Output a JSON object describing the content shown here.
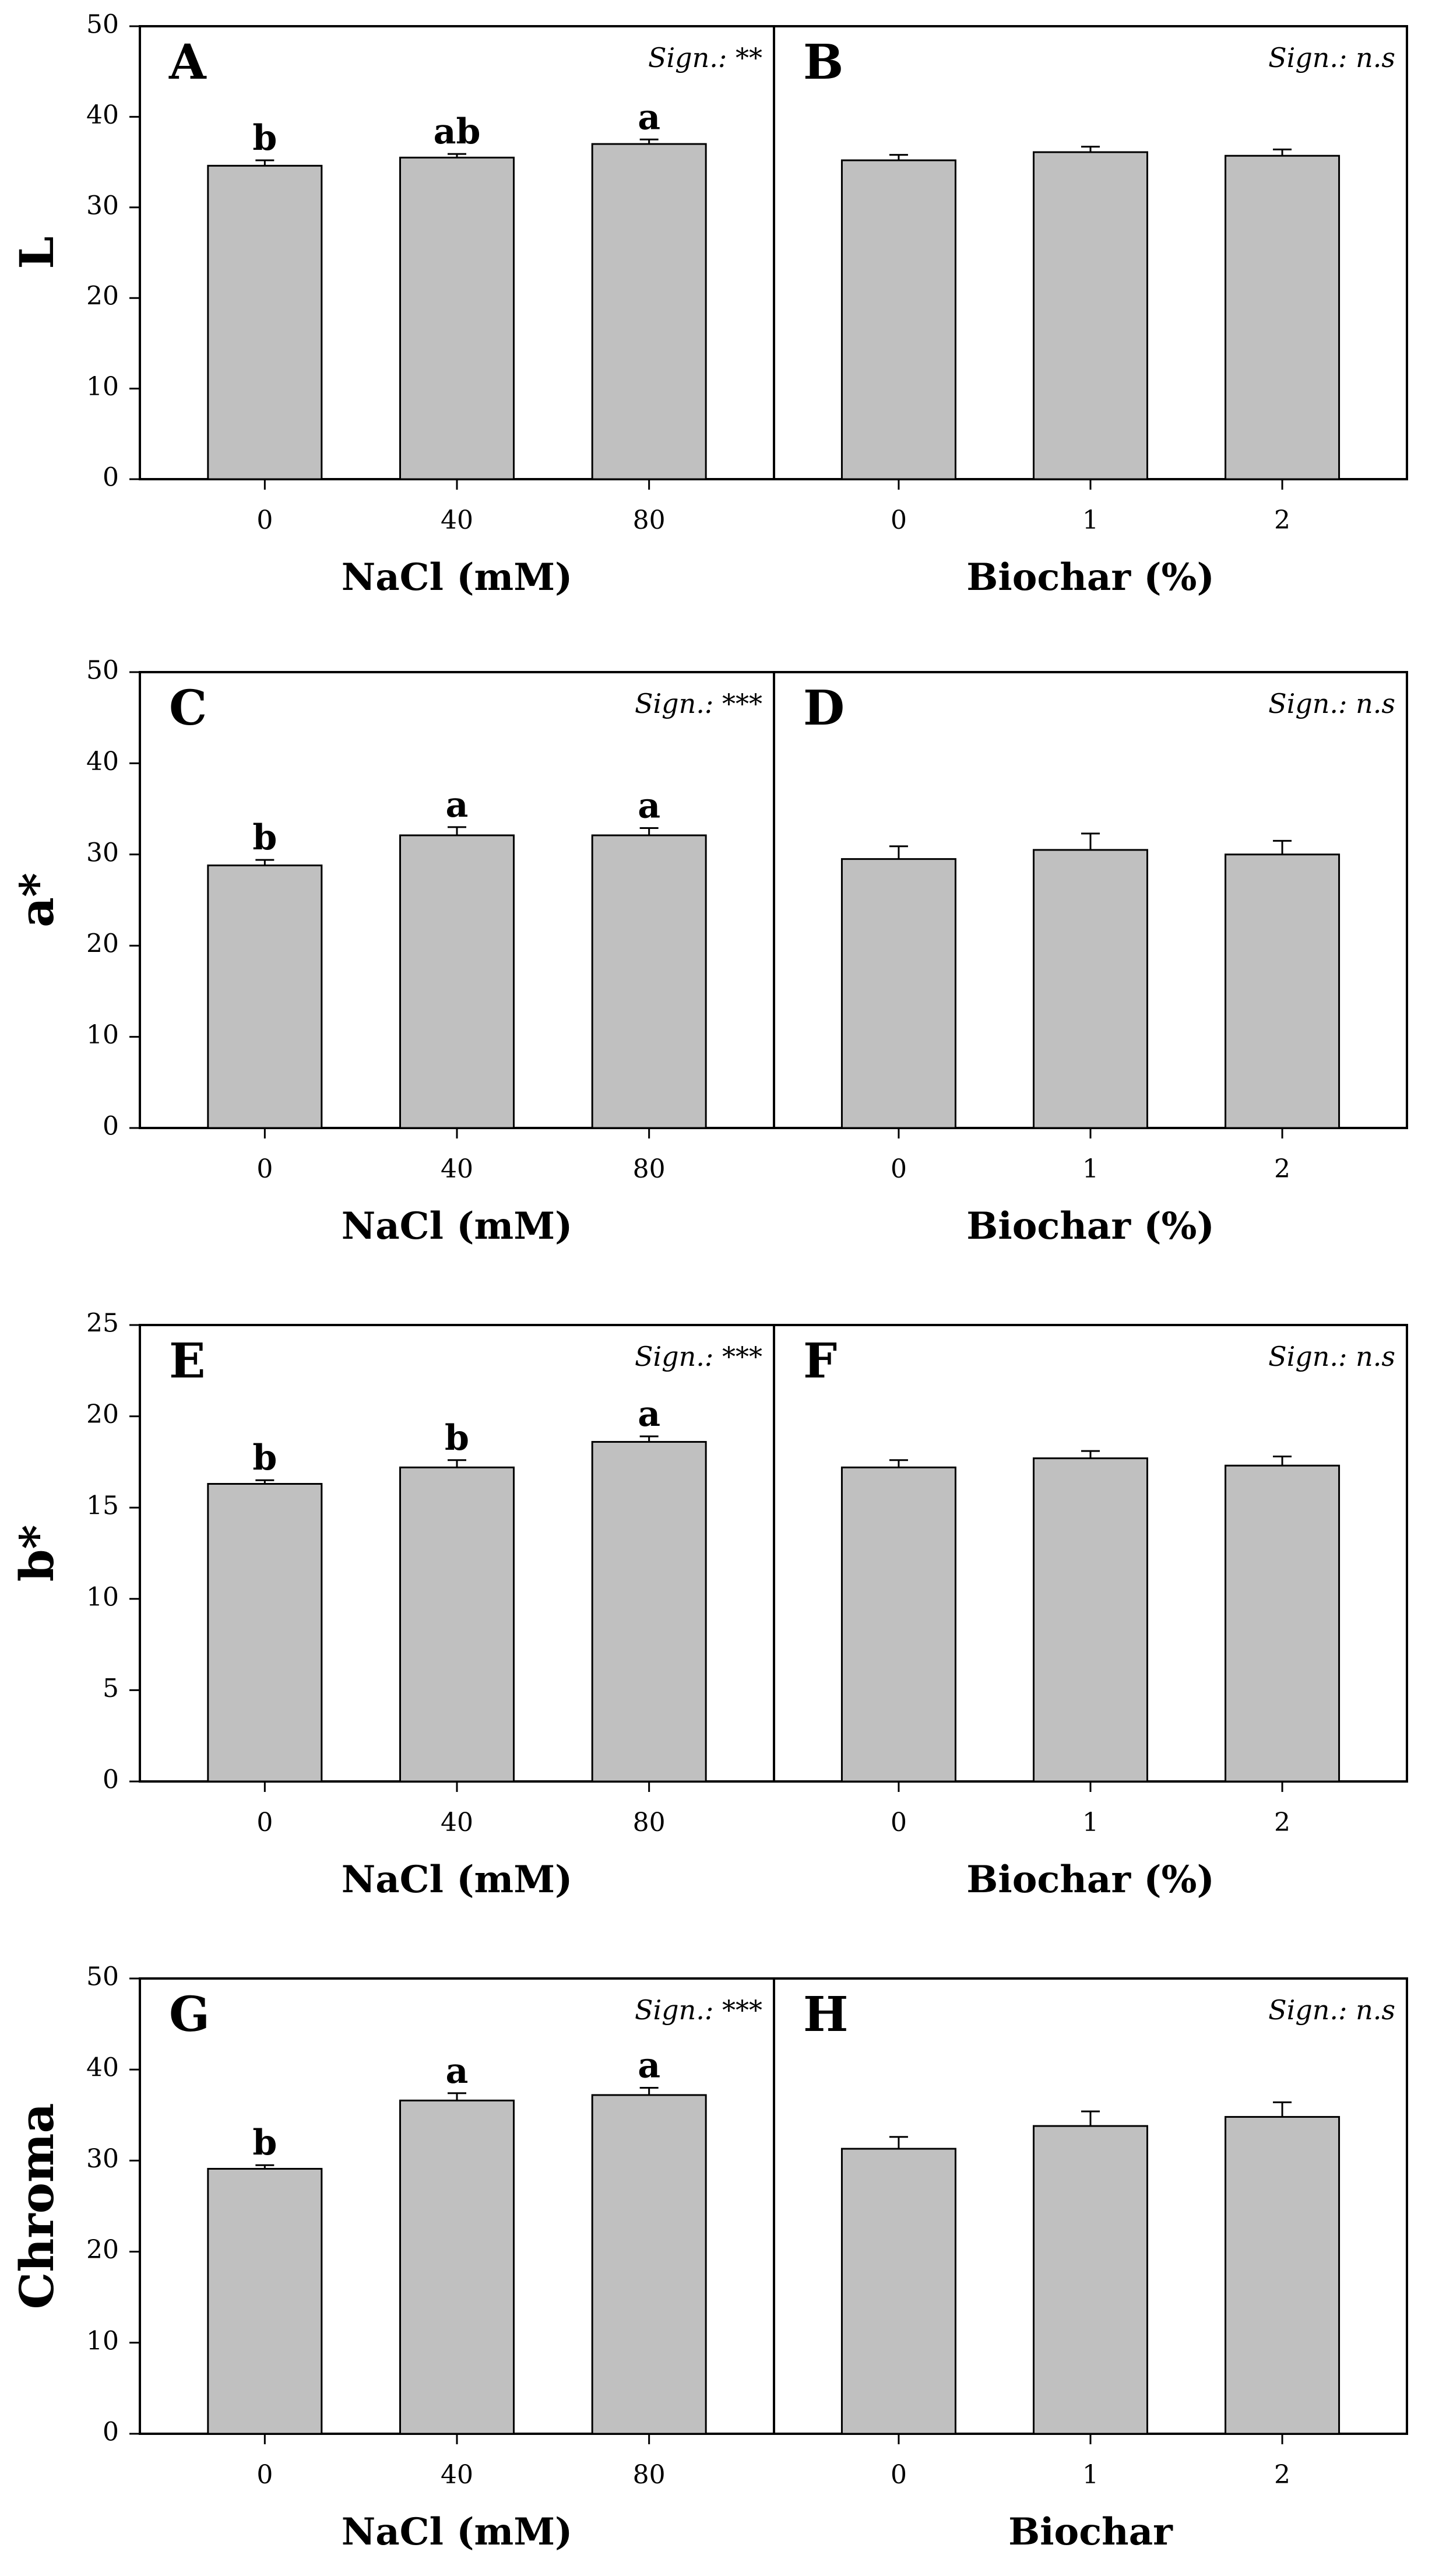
{
  "chart_data": [
    {
      "type": "bar",
      "row": "L",
      "ylabel": "L",
      "ylim": [
        0,
        50
      ],
      "yticks": [
        0,
        10,
        20,
        30,
        40,
        50
      ],
      "panels": [
        {
          "letter": "A",
          "sig": "Sign.: **",
          "xlabel": "NaCl (mM)",
          "categories": [
            "0",
            "40",
            "80"
          ],
          "values": [
            34.6,
            35.5,
            37.0
          ],
          "errors": [
            0.6,
            0.4,
            0.5
          ],
          "labels": [
            "b",
            "ab",
            "a"
          ]
        },
        {
          "letter": "B",
          "sig": "Sign.: n.s",
          "xlabel": "Biochar (%)",
          "categories": [
            "0",
            "1",
            "2"
          ],
          "values": [
            35.2,
            36.1,
            35.7
          ],
          "errors": [
            0.6,
            0.6,
            0.7
          ],
          "labels": [
            "",
            "",
            ""
          ]
        }
      ]
    },
    {
      "type": "bar",
      "row": "a*",
      "ylabel": "a*",
      "ylim": [
        0,
        50
      ],
      "yticks": [
        0,
        10,
        20,
        30,
        40,
        50
      ],
      "panels": [
        {
          "letter": "C",
          "sig": "Sign.: ***",
          "xlabel": "NaCl (mM)",
          "categories": [
            "0",
            "40",
            "80"
          ],
          "values": [
            28.8,
            32.1,
            32.1
          ],
          "errors": [
            0.6,
            0.9,
            0.8
          ],
          "labels": [
            "b",
            "a",
            "a"
          ]
        },
        {
          "letter": "D",
          "sig": "Sign.: n.s",
          "xlabel": "Biochar (%)",
          "categories": [
            "0",
            "1",
            "2"
          ],
          "values": [
            29.5,
            30.5,
            30.0
          ],
          "errors": [
            1.4,
            1.8,
            1.5
          ],
          "labels": [
            "",
            "",
            ""
          ]
        }
      ]
    },
    {
      "type": "bar",
      "row": "b*",
      "ylabel": "b*",
      "ylim": [
        0,
        25
      ],
      "yticks": [
        0,
        5,
        10,
        15,
        20,
        25
      ],
      "panels": [
        {
          "letter": "E",
          "sig": "Sign.: ***",
          "xlabel": "NaCl (mM)",
          "categories": [
            "0",
            "40",
            "80"
          ],
          "values": [
            16.3,
            17.2,
            18.6
          ],
          "errors": [
            0.2,
            0.4,
            0.3
          ],
          "labels": [
            "b",
            "b",
            "a"
          ]
        },
        {
          "letter": "F",
          "sig": "Sign.: n.s",
          "xlabel": "Biochar (%)",
          "categories": [
            "0",
            "1",
            "2"
          ],
          "values": [
            17.2,
            17.7,
            17.3
          ],
          "errors": [
            0.4,
            0.4,
            0.5
          ],
          "labels": [
            "",
            "",
            ""
          ]
        }
      ]
    },
    {
      "type": "bar",
      "row": "Chroma",
      "ylabel": "Chroma",
      "ylim": [
        0,
        50
      ],
      "yticks": [
        0,
        10,
        20,
        30,
        40,
        50
      ],
      "panels": [
        {
          "letter": "G",
          "sig": "Sign.: ***",
          "xlabel": "NaCl (mM)",
          "categories": [
            "0",
            "40",
            "80"
          ],
          "values": [
            29.1,
            36.6,
            37.2
          ],
          "errors": [
            0.4,
            0.8,
            0.8
          ],
          "labels": [
            "b",
            "a",
            "a"
          ]
        },
        {
          "letter": "H",
          "sig": "Sign.: n.s",
          "xlabel": "Biochar",
          "categories": [
            "0",
            "1",
            "2"
          ],
          "values": [
            31.3,
            33.8,
            34.8
          ],
          "errors": [
            1.3,
            1.6,
            1.6
          ],
          "labels": [
            "",
            "",
            ""
          ]
        }
      ]
    }
  ],
  "colors": {
    "bar_fill": "#c0c0c0",
    "bar_stroke": "#000000",
    "axis": "#000000",
    "background": "#ffffff"
  }
}
